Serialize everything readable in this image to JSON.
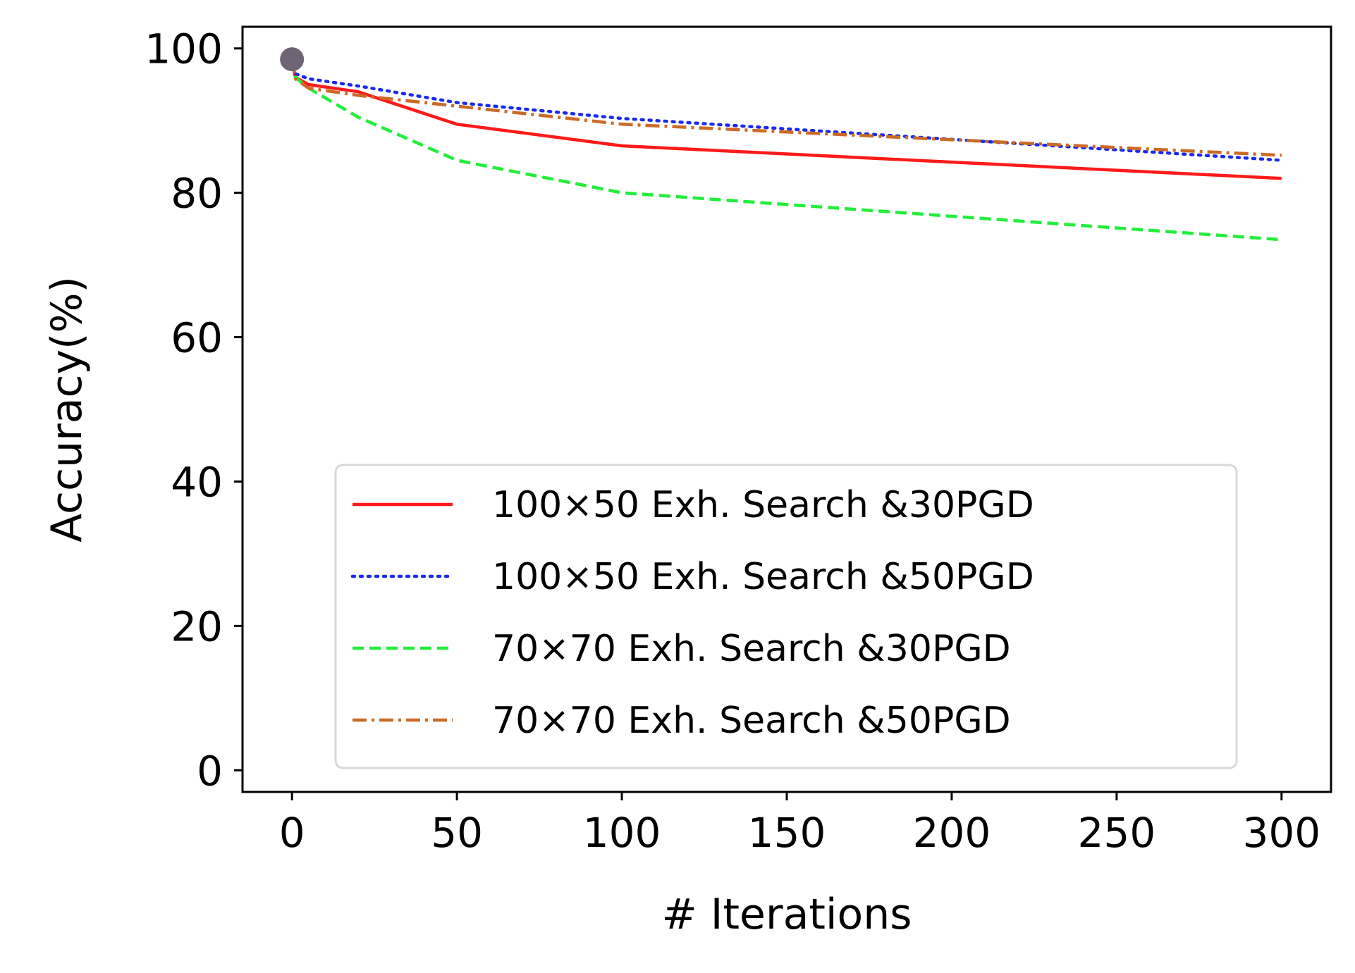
{
  "chart_data": {
    "type": "line",
    "title": "",
    "xlabel": "# Iterations",
    "ylabel": "Accuracy(%)",
    "xlim": [
      -15,
      315
    ],
    "ylim": [
      -3,
      103
    ],
    "xticks": [
      0,
      50,
      100,
      150,
      200,
      250,
      300
    ],
    "yticks": [
      0,
      20,
      40,
      60,
      80,
      100
    ],
    "grid": false,
    "legend_position": "lower-right",
    "start_marker": {
      "x": 0,
      "y": 98.5,
      "color": "#6e6474"
    },
    "series": [
      {
        "name": "100×50 Exh. Search &30PGD",
        "color": "#ff1a1a",
        "dash": "solid",
        "x": [
          0,
          1,
          5,
          20,
          50,
          100,
          300
        ],
        "y": [
          98.5,
          96.0,
          95.0,
          94.0,
          89.5,
          86.5,
          82.0
        ]
      },
      {
        "name": "100×50 Exh. Search &50PGD",
        "color": "#1a2aee",
        "dash": "dotted",
        "x": [
          0,
          1,
          5,
          20,
          50,
          100,
          300
        ],
        "y": [
          98.5,
          96.5,
          95.8,
          94.8,
          92.5,
          90.3,
          84.5
        ]
      },
      {
        "name": "70×70 Exh. Search &30PGD",
        "color": "#22ee3a",
        "dash": "dashed",
        "x": [
          0,
          1,
          5,
          20,
          50,
          100,
          300
        ],
        "y": [
          98.5,
          96.0,
          94.5,
          90.5,
          84.5,
          80.0,
          73.5
        ]
      },
      {
        "name": "70×70 Exh. Search &50PGD",
        "color": "#cc6a26",
        "dash": "dashdot",
        "x": [
          0,
          1,
          5,
          20,
          50,
          100,
          300
        ],
        "y": [
          98.5,
          95.8,
          94.5,
          93.5,
          92.0,
          89.5,
          85.2
        ]
      }
    ]
  }
}
